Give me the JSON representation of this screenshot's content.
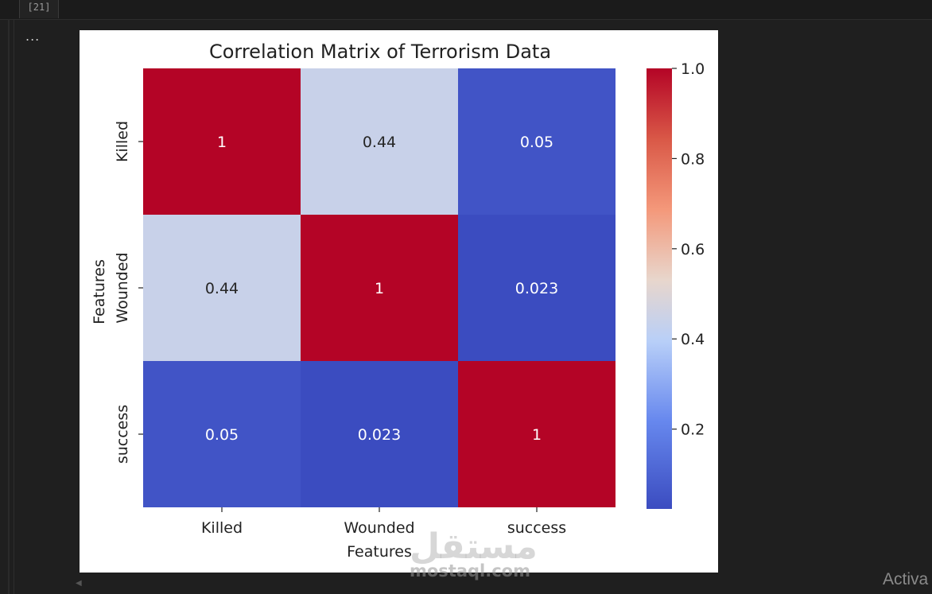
{
  "cell": {
    "execution_count": "[21]",
    "more_label": "..."
  },
  "chart_data": {
    "type": "heatmap",
    "title": "Correlation Matrix of Terrorism Data",
    "xlabel": "Features",
    "ylabel": "Features",
    "rows": [
      "Killed",
      "Wounded",
      "success"
    ],
    "cols": [
      "Killed",
      "Wounded",
      "success"
    ],
    "values": [
      [
        1,
        0.44,
        0.05
      ],
      [
        0.44,
        1,
        0.023
      ],
      [
        0.05,
        0.023,
        1
      ]
    ],
    "annotations": [
      [
        "1",
        "0.44",
        "0.05"
      ],
      [
        "0.44",
        "1",
        "0.023"
      ],
      [
        "0.05",
        "0.023",
        "1"
      ]
    ],
    "colormap": "coolwarm",
    "colors": {
      "high": "#b40426",
      "mid": "#cbd8ee",
      "low": "#3b4cc0"
    },
    "colorbar": {
      "ticks": [
        0.2,
        0.4,
        0.6,
        0.8,
        1.0
      ],
      "tick_labels": [
        "0.2",
        "0.4",
        "0.6",
        "0.8",
        "1.0"
      ],
      "range": [
        0.023,
        1
      ]
    }
  },
  "watermark": {
    "arabic": "مستقل",
    "latin": "mostaql.com"
  },
  "status": {
    "activate_text": "Activa"
  }
}
